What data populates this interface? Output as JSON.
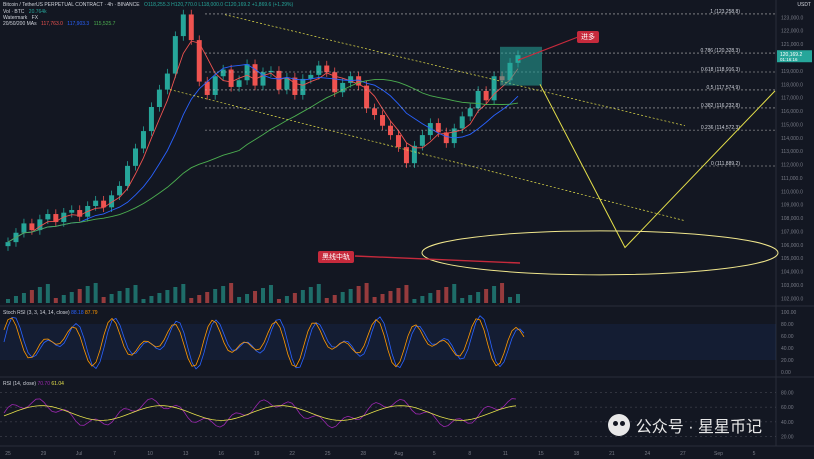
{
  "header": {
    "title": "Bitcoin / TetherUS PERPETUAL CONTRACT · 4h · BINANCE",
    "ohlc": "O118,255.3  H120,770.0  L118,000.0  C120,169.2  +1,869.6 (+1.29%)",
    "line2": [
      "Vol · BTC",
      "20.764k"
    ],
    "line3": [
      "Watermark",
      "FX"
    ],
    "line4": [
      "20/50/200 MAs",
      "117,763.0",
      "117,903.3",
      "115,525.7"
    ]
  },
  "currency": "USDT",
  "colors": {
    "bg": "#131722",
    "up": "#26a69a",
    "down": "#ef5350",
    "fib": "#bbbbbb",
    "ma20": "#ef5350",
    "ma50": "#2962ff",
    "ma200": "#4caf50",
    "target": "#e5e04a",
    "channel": "#e5e04a",
    "badge": "#c62a3c"
  },
  "annotations": {
    "long_badge": "进多",
    "support_badge": "黑线中轨"
  },
  "panels": {
    "stoch": {
      "label": "Stoch RSI (3, 3, 14, 14, close)",
      "k": "88.18",
      "d": "87.79"
    },
    "rsi": {
      "label": "RSI (14, close)",
      "value": "70.70",
      "ma": "61.04"
    }
  },
  "watermark": {
    "text": "公众号 · 星星币记"
  },
  "chart_data": {
    "type": "candlestick",
    "series_close": [
      106200,
      106900,
      107600,
      107100,
      107900,
      108300,
      107700,
      108400,
      108600,
      108100,
      108900,
      109300,
      108800,
      109700,
      110400,
      111900,
      113200,
      114500,
      116300,
      117600,
      118800,
      121600,
      123218,
      121300,
      118200,
      117200,
      118600,
      119100,
      117800,
      118300,
      119500,
      117900,
      118900,
      119000,
      117600,
      118500,
      117200,
      118400,
      118700,
      119400,
      118900,
      117400,
      118100,
      118600,
      117900,
      116200,
      115700,
      114900,
      114200,
      113300,
      112100,
      113400,
      114200,
      115100,
      114400,
      113600,
      114700,
      115600,
      116200,
      117500,
      116800,
      118600,
      118300,
      119600,
      120169
    ],
    "price_axis_ticks": [
      123000,
      122000,
      121000,
      120000,
      119000,
      118000,
      117000,
      116000,
      115000,
      114000,
      113000,
      112000,
      111000,
      110000,
      109000,
      108000,
      107000,
      106000,
      105000,
      104000,
      103000,
      102000
    ],
    "fib_levels": [
      {
        "level": "1",
        "price": 123258.8
      },
      {
        "level": "0.786",
        "price": 120328.3
      },
      {
        "level": "0.618",
        "price": 118916.3
      },
      {
        "level": "0.5",
        "price": 117574.9
      },
      {
        "level": "0.382",
        "price": 116232.8
      },
      {
        "level": "0.236",
        "price": 114572.3
      },
      {
        "level": "0",
        "price": 111889.2
      }
    ],
    "last_price": "120,169.2",
    "last_price_sub": "01:16:16",
    "x_labels": [
      "25",
      "29",
      "Jul",
      "7",
      "10",
      "13",
      "16",
      "19",
      "22",
      "25",
      "28",
      "Aug",
      "5",
      "8",
      "11",
      "15",
      "18",
      "21",
      "24",
      "27",
      "Sep",
      "5"
    ],
    "stoch_ticks": [
      100,
      80,
      60,
      40,
      20,
      0
    ],
    "rsi_ticks": [
      80,
      60,
      40,
      20
    ],
    "projection": [
      {
        "t": 0,
        "price": 118000
      },
      {
        "t": 1,
        "price": 105800
      },
      {
        "t": 2,
        "price": 117500
      }
    ]
  }
}
